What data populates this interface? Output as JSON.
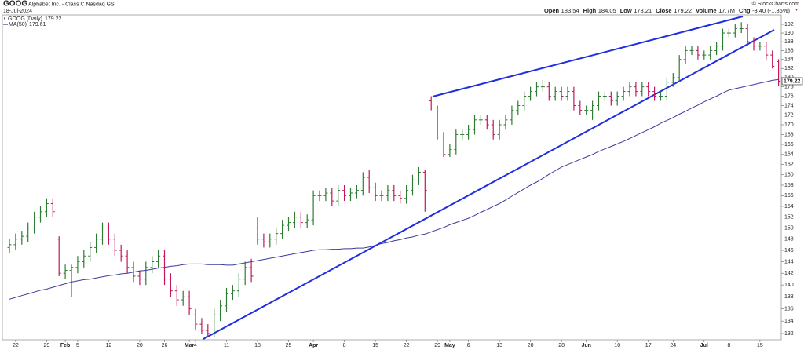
{
  "chart_data": {
    "type": "ohlc",
    "title": "GOOG",
    "subtitle": "Alphabet Inc. - Class C Nasdaq GS",
    "date": "18-Jul-2024",
    "copyright": "© StockCharts.com",
    "stats": [
      {
        "label": "Open",
        "value": 183.54
      },
      {
        "label": "High",
        "value": 184.05
      },
      {
        "label": "Low",
        "value": 178.21
      },
      {
        "label": "Close",
        "value": 179.22
      },
      {
        "label": "Volume",
        "value": "17.7M"
      },
      {
        "label": "Chg",
        "value": "-3.40 (-1.86%)"
      }
    ],
    "categories": [
      null,
      "22",
      null,
      null,
      null,
      null,
      "29",
      null,
      null,
      "Feb",
      null,
      "5",
      null,
      null,
      null,
      null,
      "12",
      null,
      null,
      null,
      null,
      "20",
      null,
      null,
      null,
      "26",
      null,
      null,
      null,
      "Mar",
      "4",
      null,
      null,
      null,
      null,
      "11",
      null,
      null,
      null,
      null,
      "18",
      null,
      null,
      null,
      null,
      "25",
      null,
      null,
      null,
      "Apr",
      null,
      null,
      null,
      null,
      "8",
      null,
      null,
      null,
      null,
      "15",
      null,
      null,
      null,
      null,
      "22",
      null,
      null,
      null,
      null,
      "29",
      null,
      "May",
      null,
      null,
      "6",
      null,
      null,
      null,
      null,
      "13",
      null,
      null,
      null,
      null,
      "20",
      null,
      null,
      null,
      null,
      "28",
      null,
      null,
      null,
      "Jun",
      null,
      null,
      null,
      null,
      "10",
      null,
      null,
      null,
      null,
      "17",
      null,
      null,
      null,
      "24",
      null,
      null,
      null,
      null,
      "Jul",
      null,
      null,
      null,
      "8",
      null,
      null,
      null,
      null,
      "15",
      null,
      null,
      null
    ],
    "series": [
      {
        "name": "GOOG (Daily)",
        "last": 179.22,
        "up_color": "#2e7d32",
        "down_color": "#c2185b",
        "open": [
          146.5,
          147,
          148,
          148.5,
          150,
          152,
          153,
          154.5,
          148,
          142,
          142.5,
          143,
          144,
          145,
          146.5,
          148,
          150,
          148,
          146,
          145,
          143,
          141.5,
          141,
          143,
          144,
          145,
          141,
          139,
          137.5,
          138,
          135,
          133.5,
          132.5,
          132,
          135,
          136.5,
          138.5,
          139,
          141,
          143,
          150,
          148,
          147.5,
          148,
          149,
          150.5,
          151,
          152,
          151,
          151.5,
          156,
          156,
          156.5,
          155,
          157,
          156,
          156.5,
          157,
          159.5,
          157.5,
          156,
          156,
          157,
          156,
          155.5,
          157,
          159,
          160.5,
          175,
          173.5,
          167.5,
          164,
          165,
          168,
          168,
          169,
          171,
          171,
          170,
          168,
          170,
          171,
          173,
          174,
          176,
          177,
          178,
          178,
          176,
          177,
          176,
          177,
          174,
          173,
          173,
          174,
          176,
          176,
          175,
          176,
          177,
          178,
          177,
          178,
          177,
          176,
          176,
          179,
          180,
          184,
          186,
          186,
          185,
          185,
          186,
          187,
          190,
          190,
          191,
          191,
          188,
          187,
          187,
          185,
          183.54
        ],
        "high": [
          148,
          149,
          149.5,
          151,
          153,
          154,
          155.5,
          155.5,
          148.5,
          143.5,
          143.5,
          145,
          146,
          147.5,
          149,
          151,
          151,
          149,
          147,
          146,
          144,
          142.5,
          144,
          145,
          146,
          146,
          142,
          140,
          139,
          139,
          136,
          134.5,
          133.5,
          136,
          137.5,
          139.5,
          140,
          142,
          144,
          144.5,
          152,
          149,
          149,
          150,
          151.5,
          152,
          153,
          153,
          152.5,
          157,
          157,
          157.5,
          157.5,
          158,
          158,
          157.5,
          158,
          160.5,
          161,
          158.5,
          157,
          158,
          158,
          157,
          158,
          160,
          161.5,
          161,
          176,
          174,
          168.5,
          166,
          169,
          169,
          170,
          172,
          172,
          172,
          171,
          171,
          172,
          174,
          175,
          177,
          178,
          179,
          179.5,
          179,
          178,
          178,
          178,
          178,
          175,
          174,
          175,
          177,
          177,
          177,
          177,
          178,
          179,
          179,
          179,
          179,
          178,
          177,
          180,
          181,
          185,
          187,
          187,
          187,
          186,
          187,
          188,
          191,
          191,
          192,
          192.5,
          192,
          189,
          188,
          188,
          186,
          184.05
        ],
        "low": [
          145.5,
          146,
          147,
          147.5,
          149,
          151,
          152,
          152,
          141.5,
          141,
          138,
          142,
          143,
          144,
          145.5,
          147,
          147,
          145,
          144,
          142,
          140.5,
          140,
          140,
          142,
          143,
          140,
          138,
          136.5,
          136.5,
          135,
          132.5,
          132,
          131.5,
          131.5,
          134,
          135.5,
          137.5,
          138,
          140,
          140.5,
          147,
          146.5,
          146.5,
          147,
          148,
          149.5,
          150,
          150,
          150,
          150.5,
          155,
          155,
          154,
          154,
          155,
          155,
          155.5,
          156,
          156.5,
          155,
          155,
          155,
          155,
          154.5,
          154.5,
          156,
          158,
          153,
          173,
          167,
          163.5,
          163.5,
          164,
          167,
          167,
          168,
          170,
          169,
          167,
          167,
          169,
          170,
          172,
          173,
          175,
          176,
          177,
          175,
          175,
          175,
          175,
          173,
          172,
          172,
          171,
          173,
          175,
          174,
          174,
          175,
          176,
          176,
          176,
          176,
          175,
          175,
          175,
          178,
          179,
          183,
          185,
          184,
          184,
          184,
          185,
          186,
          189,
          189,
          190,
          187,
          186,
          186,
          184,
          182,
          178.21
        ],
        "close": [
          147,
          148,
          148.5,
          150,
          152,
          153,
          154.5,
          153,
          142,
          142.5,
          143,
          144,
          145,
          146.5,
          148,
          150,
          148,
          146,
          145,
          143,
          141.5,
          141,
          143,
          144,
          145,
          141,
          139,
          137.5,
          138,
          136,
          133.5,
          132.5,
          132,
          135,
          136.5,
          138.5,
          139,
          141,
          143,
          141.5,
          148,
          147.5,
          148,
          149,
          150.5,
          151,
          152,
          151,
          151.5,
          156,
          156,
          156.5,
          155,
          157,
          156,
          156.5,
          157,
          159.5,
          157.5,
          156,
          156,
          157,
          156,
          155.5,
          157,
          159,
          160.5,
          157,
          173.5,
          167.5,
          164,
          165,
          168,
          168,
          169,
          171,
          171,
          170,
          168,
          170,
          171,
          173,
          174,
          176,
          177,
          178,
          178,
          176,
          177,
          176,
          177,
          174,
          173,
          173,
          174,
          176,
          176,
          175,
          176,
          177,
          178,
          177,
          178,
          177,
          176,
          176,
          179,
          180,
          184,
          186,
          186,
          185,
          185,
          186,
          187,
          190,
          190,
          191,
          191,
          188,
          187,
          187,
          185,
          182.5,
          179.22
        ]
      },
      {
        "name": "MA(50)",
        "type": "line",
        "color": "#3b3b9e",
        "last": 179.61,
        "values": [
          137.6,
          137.9,
          138.2,
          138.5,
          138.8,
          139.1,
          139.3,
          139.6,
          139.9,
          140.2,
          140.5,
          140.7,
          140.9,
          141.0,
          141.2,
          141.4,
          141.6,
          141.7,
          141.9,
          142.0,
          142.2,
          142.4,
          142.5,
          142.7,
          142.9,
          143.0,
          143.2,
          143.3,
          143.5,
          143.6,
          143.6,
          143.6,
          143.5,
          143.5,
          143.5,
          143.4,
          143.4,
          143.6,
          143.8,
          144.0,
          144.2,
          144.4,
          144.6,
          144.8,
          145.0,
          145.2,
          145.4,
          145.6,
          145.8,
          146.0,
          146.1,
          146.1,
          146.2,
          146.2,
          146.3,
          146.3,
          146.4,
          146.4,
          146.6,
          146.9,
          147.2,
          147.4,
          147.7,
          147.9,
          148.2,
          148.4,
          148.7,
          148.9,
          149.3,
          149.7,
          150.1,
          150.6,
          151.0,
          151.4,
          151.8,
          152.3,
          152.9,
          153.4,
          154.0,
          154.5,
          155.2,
          155.9,
          156.6,
          157.3,
          158.0,
          158.6,
          159.3,
          160.1,
          160.8,
          161.5,
          162.0,
          162.5,
          163.0,
          163.5,
          164.0,
          164.6,
          165.1,
          165.6,
          166.1,
          166.6,
          167.2,
          167.8,
          168.4,
          169.0,
          169.6,
          170.3,
          170.9,
          171.5,
          172.2,
          172.8,
          173.5,
          174.1,
          174.8,
          175.4,
          176.0,
          176.7,
          177.3,
          177.6,
          177.9,
          178.2,
          178.5,
          178.8,
          179.1,
          179.4,
          179.61
        ]
      }
    ],
    "ylim": [
      131,
      193.4
    ],
    "yticks": [
      132,
      134,
      136,
      138,
      140,
      142,
      144,
      146,
      148,
      150,
      152,
      154,
      156,
      158,
      160,
      162,
      164,
      166,
      168,
      170,
      172,
      174,
      176,
      178,
      180,
      182,
      184,
      186,
      188,
      190,
      192
    ],
    "log": true,
    "grid": false
  }
}
